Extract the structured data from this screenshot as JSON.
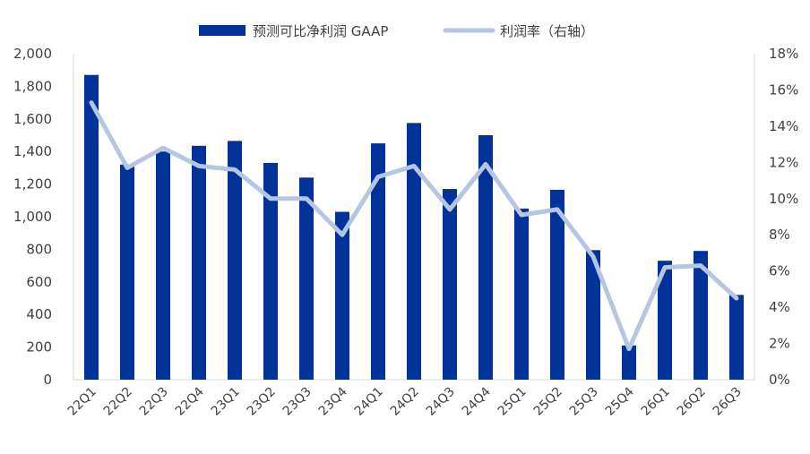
{
  "chart_data": {
    "type": "bar",
    "categories": [
      "22Q1",
      "22Q2",
      "22Q3",
      "22Q4",
      "23Q1",
      "23Q2",
      "23Q3",
      "23Q4",
      "24Q1",
      "24Q2",
      "24Q3",
      "24Q4",
      "25Q1",
      "25Q2",
      "25Q3",
      "25Q4",
      "26Q1",
      "26Q2",
      "26Q3"
    ],
    "series": [
      {
        "name": "预测可比净利润 GAAP",
        "type": "bar",
        "axis": "left",
        "color": "#003399",
        "values": [
          1870,
          1320,
          1400,
          1435,
          1465,
          1330,
          1240,
          1030,
          1450,
          1575,
          1170,
          1500,
          1050,
          1165,
          795,
          210,
          730,
          790,
          520
        ]
      },
      {
        "name": "利润率（右轴）",
        "type": "line",
        "axis": "right",
        "color": "#b4c6e4",
        "values": [
          15.3,
          11.7,
          12.8,
          11.8,
          11.6,
          10.0,
          10.0,
          8.0,
          11.2,
          11.8,
          9.4,
          11.9,
          9.1,
          9.4,
          6.8,
          1.7,
          6.2,
          6.3,
          4.5
        ]
      }
    ],
    "ylim": [
      0,
      2000
    ],
    "y_ticks": [
      "0",
      "200",
      "400",
      "600",
      "800",
      "1,000",
      "1,200",
      "1,400",
      "1,600",
      "1,800",
      "2,000"
    ],
    "y2lim": [
      0,
      18
    ],
    "y2_ticks": [
      "0%",
      "2%",
      "4%",
      "6%",
      "8%",
      "10%",
      "12%",
      "14%",
      "16%",
      "18%"
    ],
    "legend_position": "top-center",
    "grid": false
  }
}
